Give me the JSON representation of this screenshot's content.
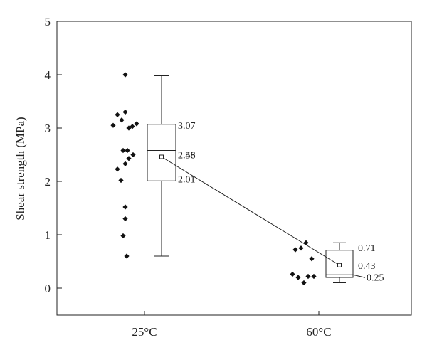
{
  "chart_data": {
    "type": "box_with_points",
    "title": "",
    "xlabel": "",
    "ylabel": "Shear strength (MPa)",
    "ylim": [
      -0.5,
      5
    ],
    "yticks": [
      0,
      1,
      2,
      3,
      4,
      5
    ],
    "categories": [
      "25°C",
      "60°C"
    ],
    "groups": [
      {
        "category": "25°C",
        "points": [
          4.0,
          3.3,
          3.25,
          3.15,
          3.08,
          3.05,
          3.03,
          3.0,
          2.58,
          2.58,
          2.5,
          2.43,
          2.33,
          2.23,
          2.02,
          1.52,
          1.3,
          0.98,
          0.6
        ],
        "box": {
          "whisker_low": 0.6,
          "q1": 2.01,
          "median": 2.58,
          "mean": 2.46,
          "q3": 3.07,
          "whisker_high": 3.98
        },
        "labels": {
          "q3": "3.07",
          "median": "2.58",
          "mean": "2.46",
          "q1": "2.01"
        }
      },
      {
        "category": "60°C",
        "points": [
          0.85,
          0.75,
          0.72,
          0.55,
          0.26,
          0.22,
          0.22,
          0.2,
          0.1
        ],
        "box": {
          "whisker_low": 0.1,
          "q1": 0.2,
          "median": 0.25,
          "mean": 0.43,
          "q3": 0.71,
          "whisker_high": 0.85
        },
        "labels": {
          "q3": "0.71",
          "mean": "0.43",
          "median": "0.25"
        }
      }
    ],
    "mean_line": true
  }
}
